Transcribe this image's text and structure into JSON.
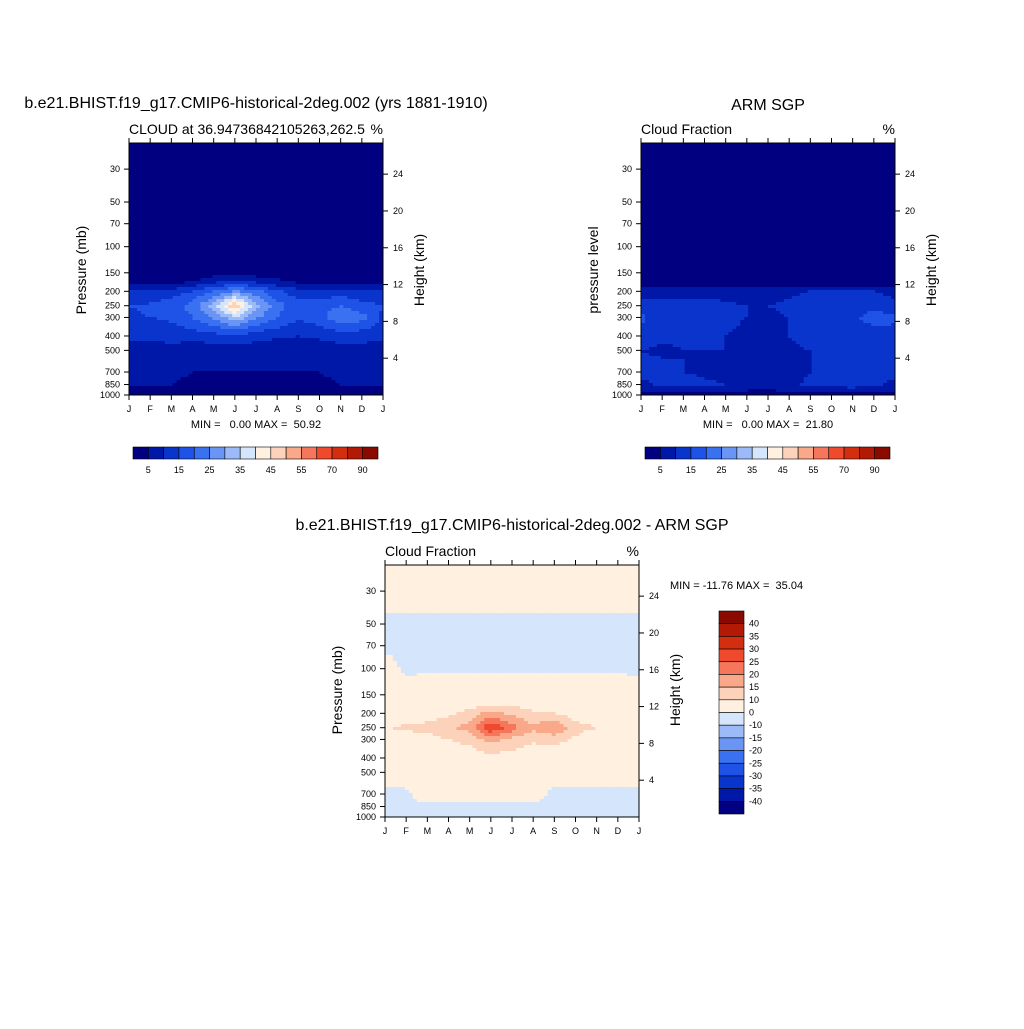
{
  "colors": {
    "palette": [
      "#000080",
      "#0018a8",
      "#0a35cc",
      "#1f52e6",
      "#3a71f0",
      "#6a95f5",
      "#9cbaf7",
      "#d5e5fb",
      "#fff0e0",
      "#fcd2ba",
      "#f9a98a",
      "#f5765b",
      "#f04a2e",
      "#d42e10",
      "#b21a05",
      "#8a0a00"
    ],
    "background": "#ffffff"
  },
  "months": [
    "J",
    "F",
    "M",
    "A",
    "M",
    "J",
    "J",
    "A",
    "S",
    "O",
    "N",
    "D",
    "J"
  ],
  "pressure_ticks": [
    30,
    50,
    70,
    100,
    150,
    200,
    250,
    300,
    400,
    500,
    700,
    850,
    1000
  ],
  "height_ticks": [
    4,
    8,
    12,
    16,
    20,
    24
  ],
  "panels": [
    {
      "title": "b.e21.BHIST.f19_g17.CMIP6-historical-2deg.002 (yrs 1881-1910)",
      "left_label": "CLOUD at 36.94736842105263,262.5",
      "right_label": "%",
      "ylabel": "Pressure (mb)",
      "ylabel_right": "Height (km)",
      "minmax": "MIN =   0.00 MAX =  50.92",
      "colorbar_ticks": [
        "5",
        "15",
        "25",
        "35",
        "45",
        "55",
        "70",
        "90"
      ]
    },
    {
      "title": "ARM SGP",
      "left_label": "Cloud Fraction",
      "right_label": "%",
      "ylabel": "pressure level",
      "ylabel_right": "Height (km)",
      "minmax": "MIN =   0.00 MAX =  21.80",
      "colorbar_ticks": [
        "5",
        "15",
        "25",
        "35",
        "45",
        "55",
        "70",
        "90"
      ]
    },
    {
      "title": "b.e21.BHIST.f19_g17.CMIP6-historical-2deg.002 - ARM SGP",
      "left_label": "Cloud Fraction",
      "right_label": "%",
      "ylabel": "Pressure (mb)",
      "ylabel_right": "Height (km)",
      "minmax": "MIN = -11.76 MAX =  35.04",
      "colorbar_ticks": [
        "40",
        "35",
        "30",
        "25",
        "20",
        "15",
        "10",
        "0",
        "-10",
        "-15",
        "-20",
        "-25",
        "-30",
        "-35",
        "-40"
      ]
    }
  ],
  "chart_data": [
    {
      "type": "heatmap",
      "title": "b.e21.BHIST.f19_g17.CMIP6-historical-2deg.002 (yrs 1881-1910)",
      "subtitle": "CLOUD at 36.94736842105263,262.5",
      "units": "%",
      "xlabel": "",
      "ylabel": "Pressure (mb)",
      "ylabel_right": "Height (km)",
      "x_ticks": [
        "J",
        "F",
        "M",
        "A",
        "M",
        "J",
        "J",
        "A",
        "S",
        "O",
        "N",
        "D",
        "J"
      ],
      "y_ticks": [
        30,
        50,
        70,
        100,
        150,
        200,
        250,
        300,
        400,
        500,
        700,
        850,
        1000
      ],
      "y_log": true,
      "ylim": [
        1000,
        20
      ],
      "levels": [
        5,
        10,
        15,
        20,
        25,
        30,
        35,
        40,
        45,
        50,
        55,
        60,
        70,
        80,
        90
      ],
      "min": 0.0,
      "max": 50.92,
      "x": [
        0,
        1,
        2,
        3,
        4,
        5,
        6,
        7,
        8,
        9,
        10,
        11,
        12
      ],
      "y": [
        30,
        100,
        150,
        175,
        200,
        250,
        300,
        400,
        500,
        700,
        850,
        1000
      ],
      "z": [
        [
          0,
          0,
          0,
          0,
          0,
          0,
          0,
          0,
          0,
          0,
          0,
          0,
          0
        ],
        [
          0,
          0,
          0,
          0,
          0,
          0,
          0,
          0,
          0,
          0,
          0,
          0,
          0
        ],
        [
          0,
          0,
          0,
          0,
          2,
          3,
          2,
          1,
          1,
          0,
          0,
          0,
          0
        ],
        [
          4,
          4,
          4,
          6,
          10,
          12,
          10,
          7,
          5,
          5,
          5,
          4,
          4
        ],
        [
          10,
          10,
          12,
          15,
          20,
          26,
          22,
          16,
          12,
          12,
          12,
          11,
          10
        ],
        [
          15,
          16,
          18,
          22,
          32,
          50,
          32,
          22,
          17,
          18,
          20,
          17,
          15
        ],
        [
          14,
          15,
          16,
          20,
          26,
          34,
          26,
          20,
          16,
          18,
          24,
          22,
          14
        ],
        [
          11,
          11,
          12,
          12,
          13,
          14,
          12,
          11,
          10,
          11,
          12,
          12,
          11
        ],
        [
          8,
          8,
          8,
          7,
          7,
          7,
          7,
          6,
          6,
          7,
          8,
          8,
          8
        ],
        [
          6,
          6,
          6,
          5,
          5,
          5,
          5,
          5,
          5,
          5,
          6,
          6,
          6
        ],
        [
          5,
          5,
          5,
          4,
          3,
          3,
          4,
          4,
          4,
          4,
          5,
          5,
          5
        ],
        [
          1,
          1,
          2,
          2,
          1,
          1,
          1,
          1,
          1,
          1,
          1,
          2,
          1
        ]
      ]
    },
    {
      "type": "heatmap",
      "title": "ARM SGP",
      "subtitle": "Cloud Fraction",
      "units": "%",
      "xlabel": "",
      "ylabel": "pressure level",
      "ylabel_right": "Height (km)",
      "x_ticks": [
        "J",
        "F",
        "M",
        "A",
        "M",
        "J",
        "J",
        "A",
        "S",
        "O",
        "N",
        "D",
        "J"
      ],
      "y_ticks": [
        30,
        50,
        70,
        100,
        150,
        200,
        250,
        300,
        400,
        500,
        700,
        850,
        1000
      ],
      "y_log": true,
      "ylim": [
        1000,
        20
      ],
      "levels": [
        5,
        10,
        15,
        20,
        25,
        30,
        35,
        40,
        45,
        50,
        55,
        60,
        70,
        80,
        90
      ],
      "min": 0.0,
      "max": 21.8,
      "x": [
        0,
        1,
        2,
        3,
        4,
        5,
        6,
        7,
        8,
        9,
        10,
        11,
        12
      ],
      "y": [
        30,
        100,
        150,
        175,
        200,
        250,
        300,
        400,
        500,
        700,
        850,
        1000
      ],
      "z": [
        [
          0,
          0,
          0,
          0,
          0,
          0,
          0,
          0,
          0,
          0,
          0,
          0,
          0
        ],
        [
          0,
          0,
          0,
          0,
          0,
          0,
          0,
          0,
          0,
          0,
          0,
          0,
          0
        ],
        [
          0,
          0,
          0,
          0,
          0,
          0,
          0,
          0,
          0,
          0,
          0,
          0,
          0
        ],
        [
          2,
          2,
          2,
          2,
          3,
          3,
          3,
          2,
          2,
          2,
          2,
          2,
          2
        ],
        [
          8,
          9,
          9,
          9,
          8,
          7,
          8,
          9,
          10,
          10,
          10,
          10,
          8
        ],
        [
          12,
          11,
          11,
          11,
          11,
          10,
          10,
          11,
          13,
          13,
          13,
          14,
          12
        ],
        [
          16,
          12,
          12,
          12,
          11,
          10,
          9,
          10,
          13,
          14,
          14,
          17,
          16
        ],
        [
          13,
          11,
          11,
          11,
          10,
          9,
          9,
          10,
          12,
          12,
          12,
          13,
          13
        ],
        [
          10,
          9,
          10,
          10,
          10,
          9,
          8,
          9,
          10,
          10,
          10,
          10,
          10
        ],
        [
          11,
          12,
          10,
          9,
          8,
          6,
          5,
          8,
          10,
          11,
          11,
          10,
          11
        ],
        [
          9,
          11,
          12,
          11,
          10,
          9,
          8,
          9,
          11,
          12,
          13,
          11,
          9
        ],
        [
          2,
          2,
          3,
          3,
          3,
          2,
          2,
          3,
          2,
          2,
          3,
          3,
          2
        ]
      ]
    },
    {
      "type": "heatmap",
      "title": "b.e21.BHIST.f19_g17.CMIP6-historical-2deg.002 - ARM SGP",
      "subtitle": "Cloud Fraction",
      "units": "%",
      "xlabel": "",
      "ylabel": "Pressure (mb)",
      "ylabel_right": "Height (km)",
      "x_ticks": [
        "J",
        "F",
        "M",
        "A",
        "M",
        "J",
        "J",
        "A",
        "S",
        "O",
        "N",
        "D",
        "J"
      ],
      "y_ticks": [
        30,
        50,
        70,
        100,
        150,
        200,
        250,
        300,
        400,
        500,
        700,
        850,
        1000
      ],
      "y_log": true,
      "ylim": [
        1000,
        20
      ],
      "levels": [
        -40,
        -35,
        -30,
        -25,
        -20,
        -15,
        -10,
        0,
        10,
        15,
        20,
        25,
        30,
        35,
        40
      ],
      "min": -11.76,
      "max": 35.04,
      "x": [
        0,
        1,
        2,
        3,
        4,
        5,
        6,
        7,
        8,
        9,
        10,
        11,
        12
      ],
      "y": [
        30,
        50,
        70,
        100,
        150,
        175,
        200,
        250,
        300,
        400,
        500,
        700,
        850,
        1000
      ],
      "z": [
        [
          2,
          2,
          2,
          2,
          2,
          2,
          2,
          2,
          2,
          2,
          2,
          2,
          2
        ],
        [
          -1,
          -1,
          -1,
          -1,
          -1,
          -1,
          -1,
          -1,
          -1,
          -1,
          -1,
          -1,
          -1
        ],
        [
          -1,
          -1,
          -1,
          -1,
          -1,
          -1,
          -1,
          -1,
          -1,
          -1,
          -1,
          -1,
          -1
        ],
        [
          2,
          -1,
          -1,
          -1,
          -1,
          -1,
          -1,
          -1,
          -1,
          -1,
          -1,
          -1,
          -1
        ],
        [
          3,
          3,
          4,
          4,
          4,
          4,
          4,
          4,
          4,
          4,
          4,
          4,
          3
        ],
        [
          3,
          4,
          5,
          6,
          8,
          10,
          9,
          8,
          6,
          4,
          3,
          3,
          3
        ],
        [
          5,
          6,
          7,
          9,
          12,
          17,
          14,
          11,
          10,
          7,
          6,
          5,
          5
        ],
        [
          10,
          11,
          12,
          14,
          17,
          30,
          22,
          16,
          20,
          12,
          10,
          10,
          10
        ],
        [
          5,
          7,
          8,
          10,
          12,
          17,
          14,
          11,
          12,
          9,
          6,
          6,
          5
        ],
        [
          3,
          3,
          4,
          5,
          6,
          8,
          7,
          6,
          6,
          5,
          4,
          3,
          3
        ],
        [
          2,
          3,
          3,
          3,
          3,
          3,
          3,
          3,
          2,
          2,
          2,
          2,
          2
        ],
        [
          -1,
          -1,
          3,
          2,
          2,
          2,
          2,
          2,
          -1,
          -1,
          -1,
          -1,
          -1
        ],
        [
          -1,
          -1,
          -1,
          -1,
          -1,
          -1,
          -1,
          -1,
          -1,
          -1,
          -1,
          -1,
          -1
        ],
        [
          -1,
          -1,
          -1,
          -1,
          -1,
          -1,
          -1,
          -1,
          -1,
          -1,
          -1,
          -1,
          -1
        ]
      ]
    }
  ]
}
